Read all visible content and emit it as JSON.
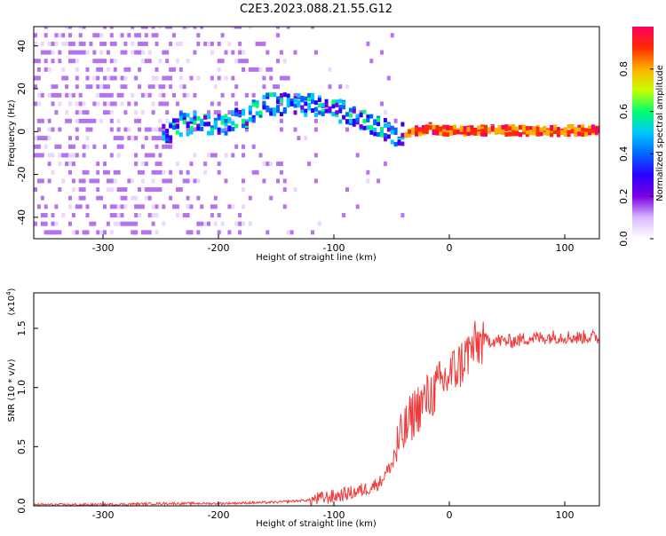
{
  "title": "C2E3.2023.088.21.55.G12",
  "colors": {
    "snr_line": "#f03a3a",
    "colormap": [
      "#ffffff",
      "#d9b8ff",
      "#7a00e0",
      "#2b00ff",
      "#0066ff",
      "#00c8ff",
      "#00ff6a",
      "#c8ff00",
      "#ffb000",
      "#ff2a00",
      "#ff0060"
    ]
  },
  "chart_data": [
    {
      "type": "heatmap",
      "xlabel": "Height of straight line (km)",
      "ylabel": "Frequency (Hz)",
      "xlim": [
        -360,
        130
      ],
      "ylim": [
        -50,
        49
      ],
      "xticks": [
        -300,
        -200,
        -100,
        0,
        100
      ],
      "yticks": [
        -40,
        -20,
        0,
        20,
        40
      ],
      "colorbar": {
        "label": "Normalized spectral amplitude",
        "range": [
          0.0,
          1.0
        ],
        "ticks": [
          "0.0",
          "0.2",
          "0.4",
          "0.6",
          "0.8"
        ]
      },
      "feature_track": {
        "x": [
          -240,
          -220,
          -200,
          -180,
          -160,
          -140,
          -120,
          -100,
          -80,
          -60,
          -50,
          -40,
          -20,
          0,
          40,
          80,
          130
        ],
        "y": [
          3,
          3,
          3,
          6,
          12,
          13,
          12,
          10,
          6,
          2,
          -3,
          -1,
          1,
          0,
          0,
          0,
          0
        ]
      }
    },
    {
      "type": "line",
      "xlabel": "Height of straight line (km)",
      "ylabel": "SNR (10 * v/v)",
      "y_multiplier": "(x10",
      "y_multiplier_exponent": "4",
      "y_multiplier_close": ")",
      "xlim": [
        -360,
        130
      ],
      "ylim": [
        0,
        1.8
      ],
      "xticks": [
        -300,
        -200,
        -100,
        0,
        100
      ],
      "yticks": [
        "0.0",
        "0.5",
        "1.0",
        "1.5"
      ],
      "series": [
        {
          "x": [
            -360,
            -300,
            -250,
            -200,
            -150,
            -120,
            -100,
            -90,
            -80,
            -70,
            -60,
            -50,
            -45,
            -40,
            -35,
            -30,
            -25,
            -20,
            -15,
            -10,
            -5,
            0,
            5,
            10,
            15,
            20,
            25,
            30,
            40,
            50,
            60,
            70,
            80,
            90,
            100,
            110,
            120,
            130
          ],
          "values": [
            0.01,
            0.01,
            0.02,
            0.02,
            0.03,
            0.05,
            0.08,
            0.1,
            0.12,
            0.15,
            0.2,
            0.35,
            0.5,
            0.6,
            0.7,
            0.8,
            0.85,
            0.9,
            0.95,
            1.0,
            1.05,
            1.1,
            1.15,
            1.2,
            1.28,
            1.33,
            1.37,
            1.4,
            1.4,
            1.39,
            1.4,
            1.42,
            1.42,
            1.43,
            1.43,
            1.42,
            1.43,
            1.42
          ]
        }
      ]
    }
  ]
}
